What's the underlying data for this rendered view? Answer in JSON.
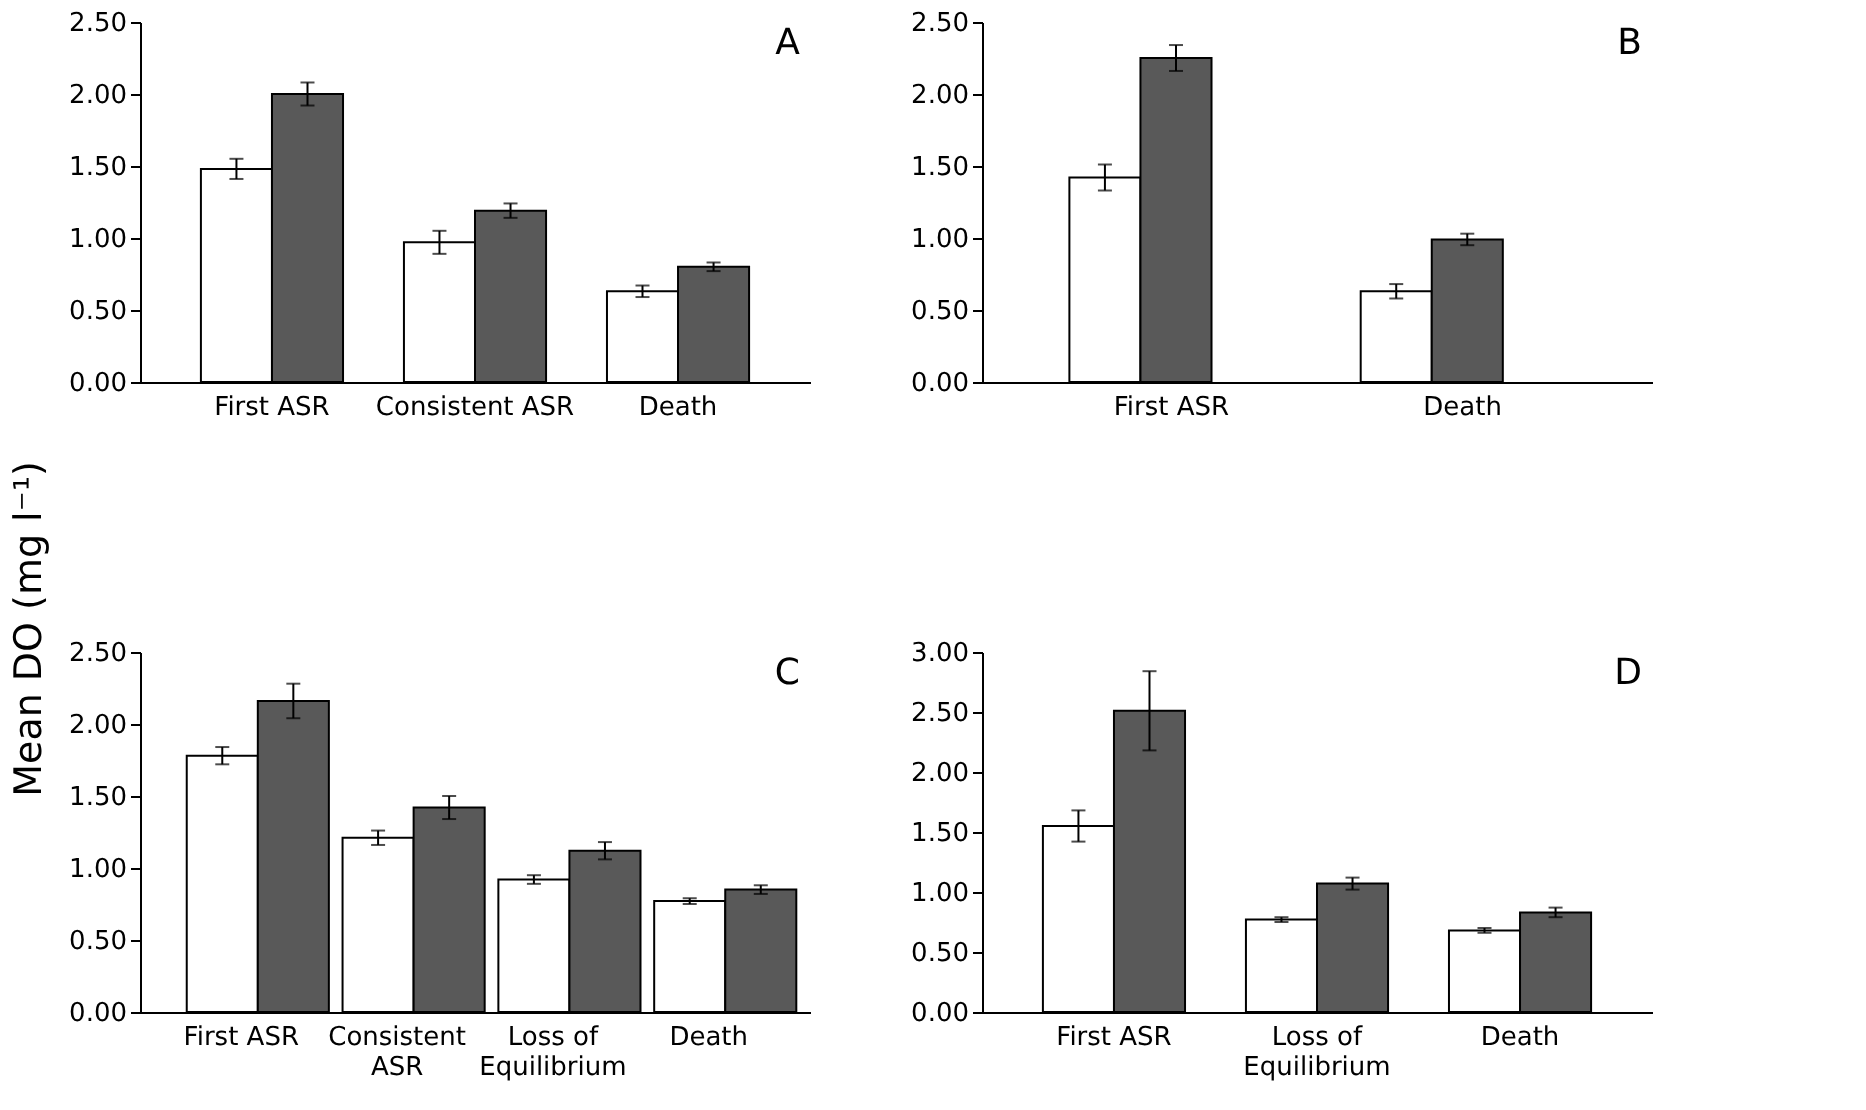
{
  "chart_data": [
    {
      "type": "bar",
      "annotations": [
        "A"
      ],
      "categories": [
        "First ASR",
        "Consistent ASR",
        "Death"
      ],
      "series": [
        {
          "color": "#ffffff",
          "values": [
            1.48,
            0.97,
            0.63
          ],
          "errors": [
            0.07,
            0.08,
            0.04
          ]
        },
        {
          "color": "#595959",
          "values": [
            2.0,
            1.19,
            0.8
          ],
          "errors": [
            0.08,
            0.05,
            0.03
          ]
        }
      ],
      "ylim": [
        0,
        2.5
      ],
      "yticks": [
        {
          "value": 0,
          "label": "0.00"
        },
        {
          "value": 0.5,
          "label": "0.50"
        },
        {
          "value": 1,
          "label": "1.00"
        },
        {
          "value": 1.5,
          "label": "1.50"
        },
        {
          "value": 2,
          "label": "2.00"
        },
        {
          "value": 2.5,
          "label": "2.50"
        }
      ]
    },
    {
      "type": "bar",
      "annotations": [
        "B"
      ],
      "categories": [
        "First ASR",
        "Death"
      ],
      "series": [
        {
          "color": "#ffffff",
          "values": [
            1.42,
            0.63
          ],
          "errors": [
            0.09,
            0.05
          ]
        },
        {
          "color": "#595959",
          "values": [
            2.25,
            0.99
          ],
          "errors": [
            0.09,
            0.04
          ]
        }
      ],
      "ylim": [
        0,
        2.5
      ],
      "yticks": [
        {
          "value": 0,
          "label": "0.00"
        },
        {
          "value": 0.5,
          "label": "0.50"
        },
        {
          "value": 1,
          "label": "1.00"
        },
        {
          "value": 1.5,
          "label": "1.50"
        },
        {
          "value": 2,
          "label": "2.00"
        },
        {
          "value": 2.5,
          "label": "2.50"
        }
      ]
    },
    {
      "type": "bar",
      "annotations": [
        "C"
      ],
      "ylabel": "Mean DO (mg l⁻¹)",
      "categories": [
        "First ASR",
        "Consistent\nASR",
        "Loss of\nEquilibrium",
        "Death"
      ],
      "series": [
        {
          "color": "#ffffff",
          "values": [
            1.78,
            1.21,
            0.92,
            0.77
          ],
          "errors": [
            0.06,
            0.05,
            0.03,
            0.02
          ]
        },
        {
          "color": "#595959",
          "values": [
            2.16,
            1.42,
            1.12,
            0.85
          ],
          "errors": [
            0.12,
            0.08,
            0.06,
            0.03
          ]
        }
      ],
      "ylim": [
        0,
        2.5
      ],
      "yticks": [
        {
          "value": 0,
          "label": "0.00"
        },
        {
          "value": 0.5,
          "label": "0.50"
        },
        {
          "value": 1,
          "label": "1.00"
        },
        {
          "value": 1.5,
          "label": "1.50"
        },
        {
          "value": 2,
          "label": "2.00"
        },
        {
          "value": 2.5,
          "label": "2.50"
        }
      ]
    },
    {
      "type": "bar",
      "annotations": [
        "D"
      ],
      "categories": [
        "First ASR",
        "Loss of\nEquilibrium",
        "Death"
      ],
      "series": [
        {
          "color": "#ffffff",
          "values": [
            1.55,
            0.77,
            0.68
          ],
          "errors": [
            0.13,
            0.02,
            0.02
          ]
        },
        {
          "color": "#595959",
          "values": [
            2.51,
            1.07,
            0.83
          ],
          "errors": [
            0.33,
            0.05,
            0.04
          ]
        }
      ],
      "ylim": [
        0,
        3
      ],
      "yticks": [
        {
          "value": 0,
          "label": "0.00"
        },
        {
          "value": 0.5,
          "label": "0.50"
        },
        {
          "value": 1,
          "label": "1.00"
        },
        {
          "value": 1.5,
          "label": "1.50"
        },
        {
          "value": 2,
          "label": "2.00"
        },
        {
          "value": 2.5,
          "label": "2.50"
        },
        {
          "value": 3,
          "label": "3.00"
        }
      ]
    }
  ]
}
